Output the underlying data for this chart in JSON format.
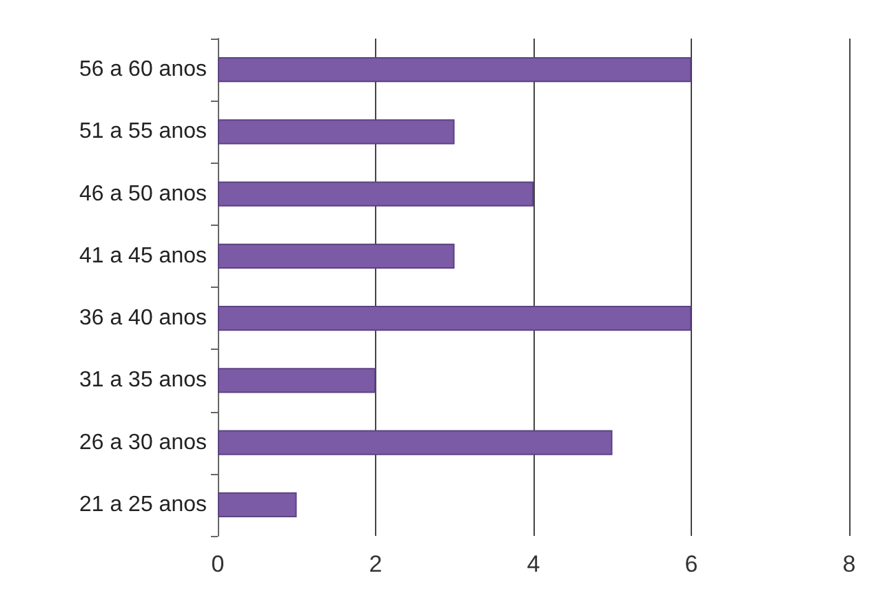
{
  "chart_data": {
    "type": "bar",
    "orientation": "horizontal",
    "categories": [
      "56 a 60 anos",
      "51 a 55 anos",
      "46 a 50 anos",
      "41 a 45 anos",
      "36 a 40 anos",
      "31 a 35 anos",
      "26 a 30 anos",
      "21 a 25 anos"
    ],
    "values": [
      6,
      3,
      4,
      3,
      6,
      2,
      5,
      1
    ],
    "color": "#7b5ba6",
    "xlim": [
      0,
      8
    ],
    "xticks": [
      0,
      2,
      4,
      6,
      8
    ],
    "grid": "x"
  }
}
